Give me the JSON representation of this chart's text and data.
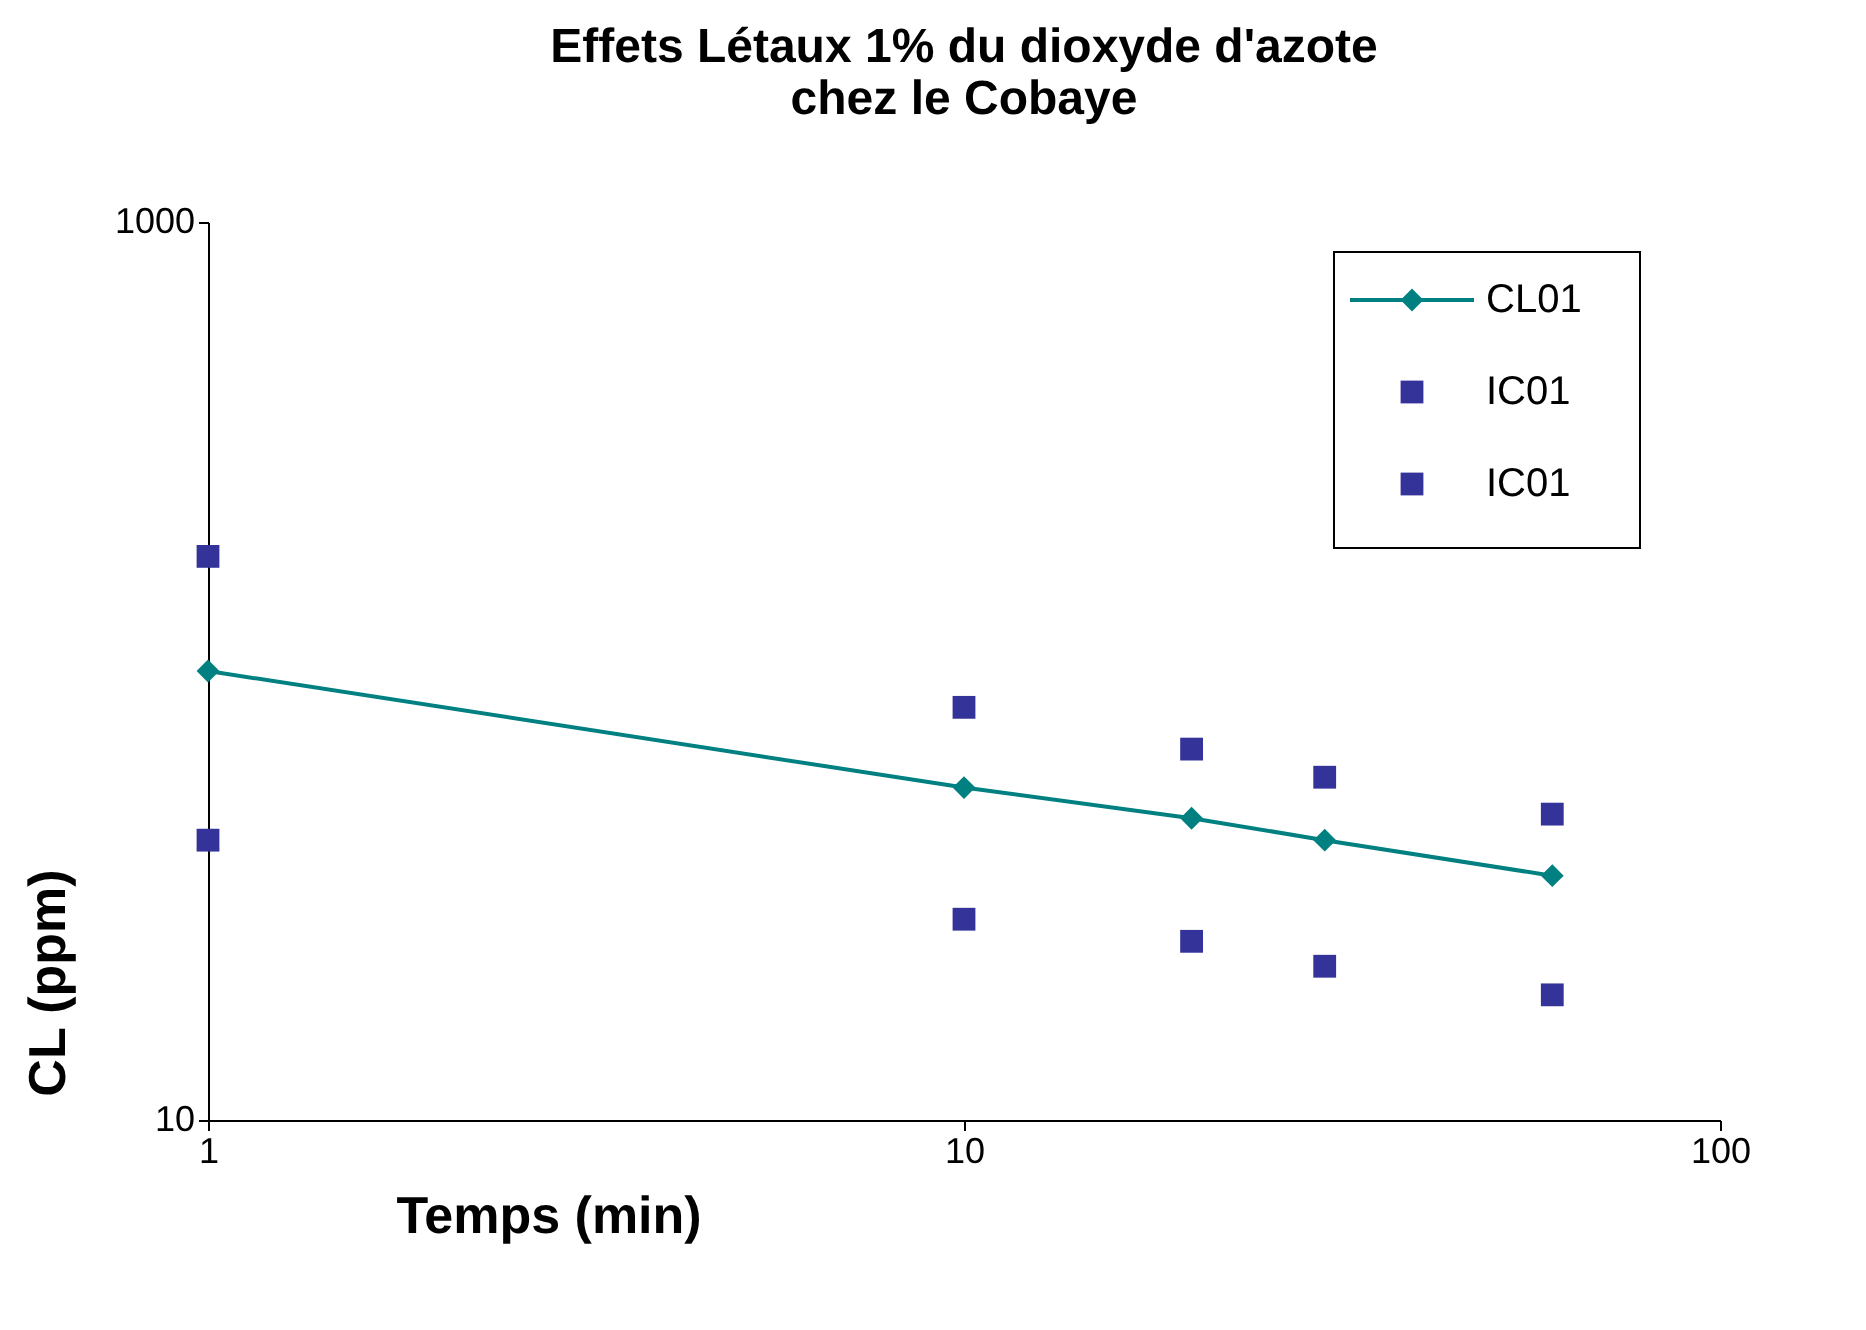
{
  "chart_data": {
    "type": "line",
    "title": [
      "Effets Létaux 1% du dioxyde d'azote",
      "chez le Cobaye"
    ],
    "xlabel": "Temps (min)",
    "ylabel": "CL (ppm)",
    "log": "xy",
    "xlim": [
      1,
      100
    ],
    "xticks": [
      1,
      10,
      100
    ],
    "ylim": [
      10,
      1000
    ],
    "yticks": [
      10,
      {
        "value": 1000,
        "label": "1000"
      }
    ],
    "grid": false,
    "legend": "top right",
    "series": [
      {
        "name": "CL01",
        "type": "line",
        "color": "#008080",
        "marker": "diamond",
        "x": [
          1,
          10,
          20,
          30,
          60
        ],
        "values": [
          100,
          55,
          47,
          42,
          35
        ]
      },
      {
        "name": "IC01",
        "type": "scatter",
        "color": "#333399",
        "marker": "square",
        "x": [
          1,
          10,
          20,
          30,
          60
        ],
        "values": [
          180,
          83,
          67,
          58,
          48
        ]
      },
      {
        "name": "IC01",
        "type": "scatter",
        "color": "#333399",
        "marker": "square",
        "x": [
          1,
          10,
          20,
          30,
          60
        ],
        "values": [
          42,
          28,
          25,
          22,
          19
        ]
      }
    ]
  }
}
